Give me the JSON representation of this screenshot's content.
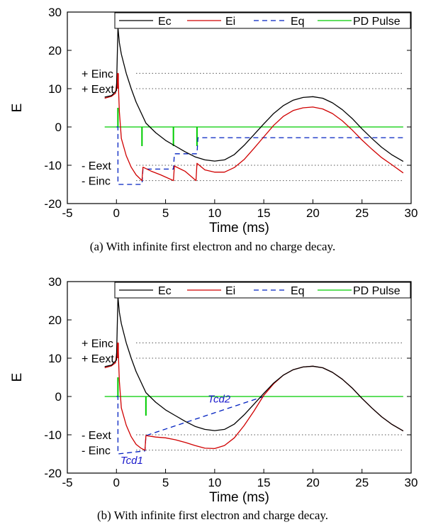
{
  "chart_data": [
    {
      "type": "line",
      "caption": "(a) With infinite first electron and no charge decay.",
      "xlabel": "Time (ms)",
      "ylabel": "E",
      "xlim": [
        -5,
        30
      ],
      "ylim": [
        -20,
        30
      ],
      "xticks": [
        -5,
        0,
        5,
        10,
        15,
        20,
        25,
        30
      ],
      "yticks": [
        -20,
        -10,
        0,
        10,
        20,
        30
      ],
      "legend_position": "top",
      "reference_lines": [
        {
          "y": 14,
          "label": "+ Einc"
        },
        {
          "y": 10,
          "label": "+ Eext"
        },
        {
          "y": -10,
          "label": "- Eext"
        },
        {
          "y": -14,
          "label": "- Einc"
        }
      ],
      "series": [
        {
          "name": "Ec",
          "color": "#000000",
          "style": "solid",
          "x": [
            -1.2,
            -0.5,
            0,
            0.15,
            0.3,
            0.5,
            1,
            1.5,
            2,
            3,
            4,
            5,
            6,
            7,
            8,
            9,
            10,
            11,
            12,
            13,
            14,
            15,
            16,
            17,
            18,
            19,
            20,
            21,
            22,
            23,
            24,
            25,
            26,
            27,
            28,
            29.2
          ],
          "y": [
            7.8,
            8.2,
            9.5,
            26,
            22,
            19,
            14,
            10,
            6.5,
            1,
            -1.5,
            -3.5,
            -5,
            -6.5,
            -7.8,
            -8.6,
            -8.9,
            -8.6,
            -7.2,
            -4.8,
            -2,
            0.8,
            3.5,
            5.6,
            7,
            7.7,
            7.9,
            7.5,
            6.3,
            4.5,
            2.2,
            -0.5,
            -3,
            -5.3,
            -7.2,
            -9
          ]
        },
        {
          "name": "Ei",
          "color": "#d00000",
          "style": "solid",
          "x": [
            -1.2,
            -0.5,
            -0.1,
            0.15,
            0.3,
            0.5,
            1,
            1.5,
            2,
            2.6,
            2.7,
            3.5,
            4.5,
            5.8,
            5.9,
            7,
            8.1,
            8.2,
            9,
            10,
            11,
            12,
            13,
            14,
            15,
            16,
            17,
            18,
            19,
            20,
            21,
            22,
            23,
            24,
            25,
            26,
            27,
            28,
            29.2
          ],
          "y": [
            7.5,
            8,
            8.8,
            14,
            4,
            -3,
            -7.5,
            -10.5,
            -12.5,
            -14,
            -10.5,
            -11.5,
            -12.5,
            -14,
            -10.2,
            -11.6,
            -14,
            -9.5,
            -11.2,
            -11.8,
            -11.8,
            -10.6,
            -8.5,
            -5.6,
            -2.6,
            0.4,
            2.8,
            4.3,
            5,
            5.2,
            4.7,
            3.5,
            1.6,
            -0.8,
            -3.4,
            -5.8,
            -8,
            -9.8,
            -12
          ]
        },
        {
          "name": "Eq",
          "color": "#0020c0",
          "style": "dashed",
          "x": [
            0,
            0.15,
            0.15,
            2.6,
            2.7,
            5.8,
            5.9,
            8.2,
            8.3,
            29.2
          ],
          "y": [
            0,
            0,
            -15,
            -15,
            -11,
            -11,
            -7,
            -7,
            -2.8,
            -2.8
          ]
        },
        {
          "name": "PD Pulse",
          "color": "#00cc00",
          "style": "solid",
          "x": [
            -1.2,
            29.2
          ],
          "y": [
            0,
            0
          ],
          "pulses": [
            {
              "x": 0.15,
              "y": 5
            },
            {
              "x": 2.6,
              "y": -5
            },
            {
              "x": 5.8,
              "y": -5
            },
            {
              "x": 8.2,
              "y": -5
            }
          ]
        }
      ]
    },
    {
      "type": "line",
      "caption": "(b) With infinite first electron and charge decay.",
      "xlabel": "Time (ms)",
      "ylabel": "E",
      "xlim": [
        -5,
        30
      ],
      "ylim": [
        -20,
        30
      ],
      "xticks": [
        -5,
        0,
        5,
        10,
        15,
        20,
        25,
        30
      ],
      "yticks": [
        -20,
        -10,
        0,
        10,
        20,
        30
      ],
      "legend_position": "top",
      "annotations": [
        "Tcd1",
        "Tcd2"
      ],
      "reference_lines": [
        {
          "y": 14,
          "label": "+ Einc"
        },
        {
          "y": 10,
          "label": "+ Eext"
        },
        {
          "y": -10,
          "label": "- Eext"
        },
        {
          "y": -14,
          "label": "- Einc"
        }
      ],
      "series": [
        {
          "name": "Ec",
          "color": "#000000",
          "style": "solid",
          "x": [
            -1.2,
            -0.5,
            0,
            0.15,
            0.3,
            0.5,
            1,
            1.5,
            2,
            3,
            4,
            5,
            6,
            7,
            8,
            9,
            10,
            11,
            12,
            13,
            14,
            15,
            16,
            17,
            18,
            19,
            20,
            21,
            22,
            23,
            24,
            25,
            26,
            27,
            28,
            29.2
          ],
          "y": [
            7.8,
            8.2,
            9.5,
            26,
            22,
            19,
            14,
            10,
            6.5,
            1,
            -1.5,
            -3.5,
            -5,
            -6.5,
            -7.8,
            -8.6,
            -8.9,
            -8.6,
            -7.2,
            -4.8,
            -2,
            0.8,
            3.5,
            5.6,
            7,
            7.7,
            7.9,
            7.5,
            6.3,
            4.5,
            2.2,
            -0.5,
            -3,
            -5.3,
            -7.2,
            -9
          ]
        },
        {
          "name": "Ei",
          "color": "#d00000",
          "style": "solid",
          "x": [
            -1.2,
            -0.5,
            -0.1,
            0.15,
            0.3,
            0.5,
            1,
            1.5,
            2,
            2.5,
            2.9,
            3,
            4,
            5,
            6,
            7,
            8,
            9,
            10,
            11,
            12,
            13,
            14,
            15,
            16,
            17,
            18,
            19,
            20,
            21,
            22,
            23,
            24,
            25,
            26,
            27,
            28,
            29.2
          ],
          "y": [
            7.5,
            8,
            8.8,
            14,
            4,
            -3,
            -7.5,
            -10.5,
            -12.5,
            -13.5,
            -14,
            -10.2,
            -10.6,
            -10.8,
            -11.3,
            -12,
            -12.8,
            -13.5,
            -13.6,
            -12.8,
            -10.8,
            -7.6,
            -3.8,
            0.3,
            3.3,
            5.6,
            7,
            7.7,
            7.9,
            7.5,
            6.3,
            4.5,
            2.2,
            -0.5,
            -3,
            -5.3,
            -7.2,
            -9
          ]
        },
        {
          "name": "Eq",
          "color": "#0020c0",
          "style": "dashed",
          "x": [
            0,
            0.15,
            0.15,
            2.9,
            3,
            15
          ],
          "y": [
            0,
            0,
            -15,
            -14.2,
            -10.2,
            0
          ]
        },
        {
          "name": "PD Pulse",
          "color": "#00cc00",
          "style": "solid",
          "x": [
            -1.2,
            29.2
          ],
          "y": [
            0,
            0
          ],
          "pulses": [
            {
              "x": 0.15,
              "y": 5
            },
            {
              "x": 3,
              "y": -5
            }
          ]
        }
      ]
    }
  ]
}
